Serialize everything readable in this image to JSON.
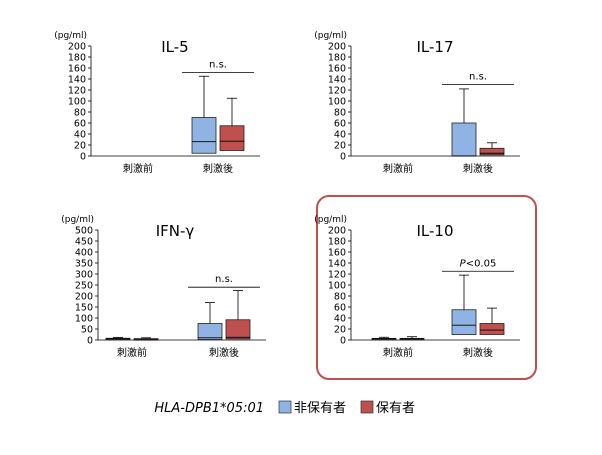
{
  "legend": {
    "title": "HLA-DPB1*05:01",
    "items": [
      {
        "label": "非保有者",
        "color": "#8fb4e3"
      },
      {
        "label": "保有者",
        "color": "#c0504d"
      }
    ]
  },
  "colors": {
    "non_carrier_fill": "#8fb4e3",
    "carrier_fill": "#c0504d",
    "highlight_border": "#c0504d",
    "axis": "#000000"
  },
  "chart_data": [
    {
      "type": "boxplot",
      "title": "IL-5",
      "ylabel": "(pg/ml)",
      "ylim": [
        0,
        200
      ],
      "yticks": [
        0,
        20,
        40,
        60,
        80,
        100,
        120,
        140,
        160,
        180,
        200
      ],
      "categories": [
        "刺激前",
        "刺激後"
      ],
      "series": [
        {
          "name": "非保有者",
          "boxes": [
            null,
            {
              "min": 5,
              "q1": 5,
              "median": 26,
              "q3": 70,
              "max": 145
            }
          ]
        },
        {
          "name": "保有者",
          "boxes": [
            null,
            {
              "min": 8,
              "q1": 10,
              "median": 27,
              "q3": 55,
              "max": 105
            }
          ]
        }
      ],
      "annotation": {
        "text": "n.s.",
        "category": "刺激後",
        "y": 152
      },
      "highlighted": false
    },
    {
      "type": "boxplot",
      "title": "IL-17",
      "ylabel": "(pg/ml)",
      "ylim": [
        0,
        200
      ],
      "yticks": [
        0,
        20,
        40,
        60,
        80,
        100,
        120,
        140,
        160,
        180,
        200
      ],
      "categories": [
        "刺激前",
        "刺激後"
      ],
      "series": [
        {
          "name": "非保有者",
          "boxes": [
            null,
            {
              "min": 0,
              "q1": 0,
              "median": 0,
              "q3": 60,
              "max": 122
            }
          ]
        },
        {
          "name": "保有者",
          "boxes": [
            null,
            {
              "min": 2,
              "q1": 2,
              "median": 5,
              "q3": 14,
              "max": 24
            }
          ]
        }
      ],
      "annotation": {
        "text": "n.s.",
        "category": "刺激後",
        "y": 130
      },
      "highlighted": false
    },
    {
      "type": "boxplot",
      "title": "IFN-γ",
      "ylabel": "(pg/ml)",
      "ylim": [
        0,
        500
      ],
      "yticks": [
        0,
        50,
        100,
        150,
        200,
        250,
        300,
        350,
        400,
        450,
        500
      ],
      "categories": [
        "刺激前",
        "刺激後"
      ],
      "series": [
        {
          "name": "非保有者",
          "boxes": [
            {
              "min": 0,
              "q1": 2,
              "median": 5,
              "q3": 8,
              "max": 12
            },
            {
              "min": 0,
              "q1": 2,
              "median": 10,
              "q3": 75,
              "max": 170
            }
          ]
        },
        {
          "name": "保有者",
          "boxes": [
            {
              "min": 0,
              "q1": 2,
              "median": 4,
              "q3": 6,
              "max": 10
            },
            {
              "min": 0,
              "q1": 5,
              "median": 12,
              "q3": 92,
              "max": 225
            }
          ]
        }
      ],
      "annotation": {
        "text": "n.s.",
        "category": "刺激後",
        "y": 240
      },
      "highlighted": false
    },
    {
      "type": "boxplot",
      "title": "IL-10",
      "ylabel": "(pg/ml)",
      "ylim": [
        0,
        200
      ],
      "yticks": [
        0,
        20,
        40,
        60,
        80,
        100,
        120,
        140,
        160,
        180,
        200
      ],
      "categories": [
        "刺激前",
        "刺激後"
      ],
      "series": [
        {
          "name": "非保有者",
          "boxes": [
            {
              "min": 0,
              "q1": 1,
              "median": 2,
              "q3": 3,
              "max": 5
            },
            {
              "min": 5,
              "q1": 10,
              "median": 27,
              "q3": 55,
              "max": 118
            }
          ]
        },
        {
          "name": "保有者",
          "boxes": [
            {
              "min": 0,
              "q1": 1,
              "median": 2,
              "q3": 3,
              "max": 6
            },
            {
              "min": 5,
              "q1": 10,
              "median": 18,
              "q3": 30,
              "max": 58
            }
          ]
        }
      ],
      "annotation": {
        "text": "<0.05",
        "prefix": "P",
        "category": "刺激後",
        "y": 125
      },
      "highlighted": true
    }
  ]
}
